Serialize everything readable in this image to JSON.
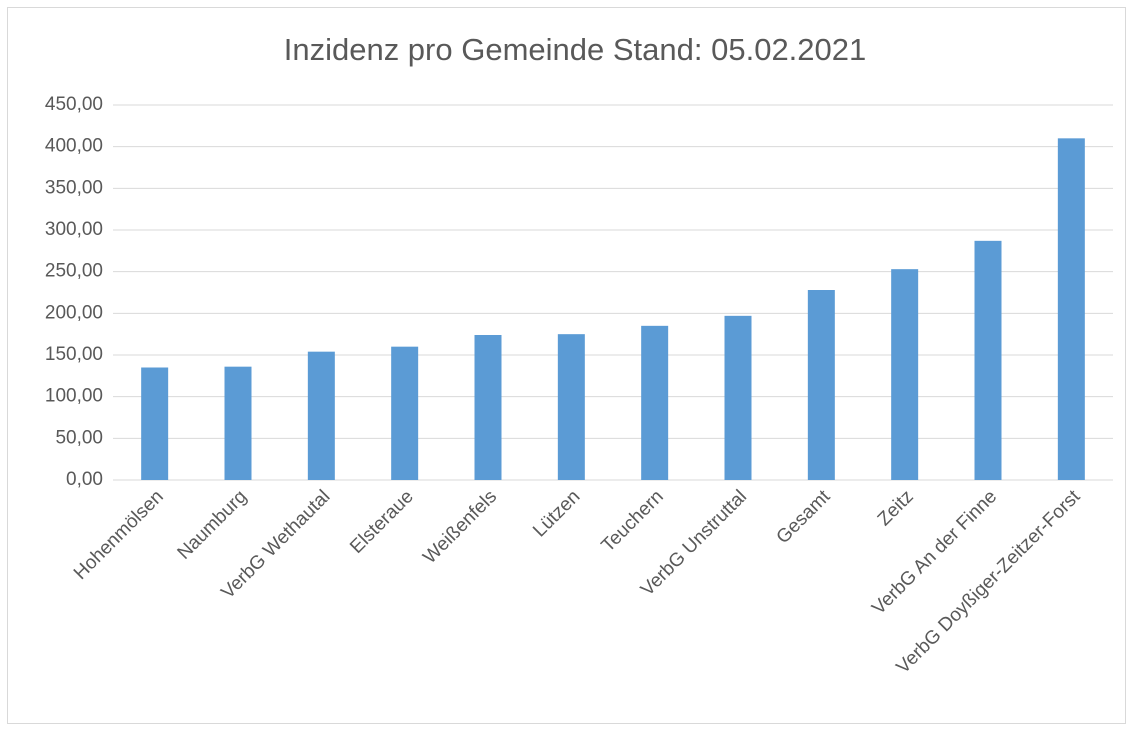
{
  "chart_data": {
    "type": "bar",
    "title": "Inzidenz pro Gemeinde Stand: 05.02.2021",
    "categories": [
      "Hohenmölsen",
      "Naumburg",
      "VerbG Wethautal",
      "Elsteraue",
      "Weißenfels",
      "Lützen",
      "Teuchern",
      "VerbG Unstruttal",
      "Gesamt",
      "Zeitz",
      "VerbG An der Finne",
      "VerbG Doyßiger-Zeitzer-Forst"
    ],
    "values": [
      135,
      136,
      154,
      160,
      174,
      175,
      185,
      197,
      228,
      253,
      287,
      410
    ],
    "color": "#5b9bd5",
    "ylim": [
      0,
      450
    ],
    "yticks": [
      {
        "value": 0,
        "label": "0,00"
      },
      {
        "value": 50,
        "label": "50,00"
      },
      {
        "value": 100,
        "label": "100,00"
      },
      {
        "value": 150,
        "label": "150,00"
      },
      {
        "value": 200,
        "label": "200,00"
      },
      {
        "value": 250,
        "label": "250,00"
      },
      {
        "value": 300,
        "label": "300,00"
      },
      {
        "value": 350,
        "label": "350,00"
      },
      {
        "value": 400,
        "label": "400,00"
      },
      {
        "value": 450,
        "label": "450,00"
      }
    ],
    "grid": true
  }
}
